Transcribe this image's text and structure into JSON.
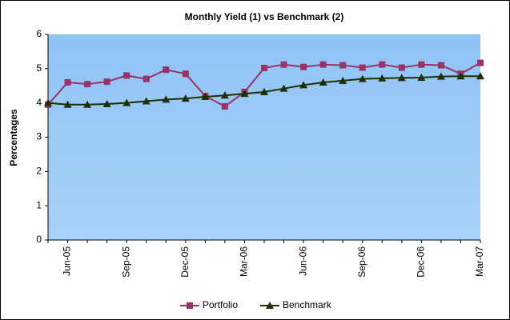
{
  "chart_data": {
    "type": "line",
    "title": "Monthly Yield (1) vs Benchmark (2)",
    "y_label": "Percentages",
    "categories": [
      null,
      "Jun-05",
      null,
      null,
      "Sep-05",
      null,
      null,
      "Dec-05",
      null,
      null,
      "Mar-06",
      null,
      null,
      "Jun-06",
      null,
      null,
      "Sep-06",
      null,
      null,
      "Dec-06",
      null,
      null,
      "Mar-07"
    ],
    "series": [
      {
        "name": "Portfolio",
        "color": "#993366",
        "marker": "square",
        "values": [
          3.95,
          4.6,
          4.55,
          4.62,
          4.8,
          4.7,
          4.97,
          4.85,
          4.2,
          3.9,
          4.32,
          5.02,
          5.12,
          5.05,
          5.12,
          5.1,
          5.03,
          5.12,
          5.03,
          5.12,
          5.1,
          4.85,
          5.17
        ]
      },
      {
        "name": "Benchmark",
        "color": "#1f2f00",
        "marker": "triangle",
        "values": [
          4.0,
          3.95,
          3.95,
          3.97,
          4.0,
          4.05,
          4.1,
          4.13,
          4.18,
          4.22,
          4.27,
          4.32,
          4.42,
          4.52,
          4.6,
          4.65,
          4.7,
          4.72,
          4.73,
          4.74,
          4.77,
          4.78,
          4.78
        ]
      }
    ],
    "ylim": [
      0,
      6
    ],
    "yticks": [
      0,
      1,
      2,
      3,
      4,
      5,
      6
    ],
    "legend": "bottom"
  }
}
